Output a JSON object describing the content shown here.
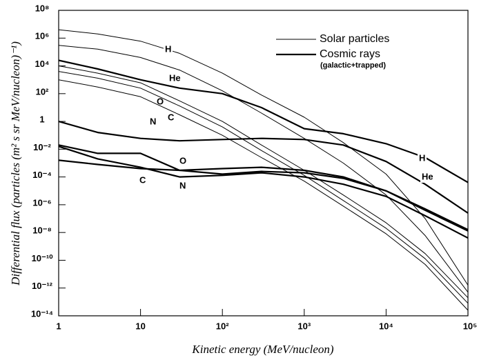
{
  "chart_data": {
    "type": "line",
    "xlabel": "Kinetic energy (MeV/nucleon)",
    "ylabel": "Differential flux (particles (m² s sr MeV/nucleon)⁻¹)",
    "x_log": true,
    "y_log": true,
    "color": "#000000",
    "xlim": [
      1,
      100000
    ],
    "ylim": [
      1e-14,
      100000000
    ],
    "xticks": [
      1,
      10,
      {
        "value": 100,
        "label": "10²"
      },
      {
        "value": 1000,
        "label": "10³"
      },
      {
        "value": 10000,
        "label": "10⁴"
      },
      {
        "value": 100000,
        "label": "10⁵"
      }
    ],
    "yticks": [
      {
        "value": 100000000,
        "label": "10⁸"
      },
      {
        "value": 1000000,
        "label": "10⁶"
      },
      {
        "value": 10000,
        "label": "10⁴"
      },
      {
        "value": 100,
        "label": "10²"
      },
      1,
      {
        "value": 0.01,
        "label": "10⁻²"
      },
      {
        "value": 0.0001,
        "label": "10⁻⁴"
      },
      {
        "value": 1e-06,
        "label": "10⁻⁶"
      },
      {
        "value": 1e-08,
        "label": "10⁻⁸"
      },
      {
        "value": 1e-10,
        "label": "10⁻¹⁰"
      },
      {
        "value": 1e-12,
        "label": "10⁻¹²"
      },
      {
        "value": 1e-14,
        "label": "10⁻¹⁴"
      }
    ],
    "x": [
      1,
      3,
      10,
      30,
      100,
      300,
      1000,
      3000,
      10000,
      30000,
      100000
    ],
    "groups": [
      {
        "name": "Solar particles",
        "line_width": 1,
        "series": [
          {
            "name": "H",
            "values": [
              4000000.0,
              2000000.0,
              600000.0,
              80000.0,
              3000.0,
              80,
              2,
              0.03,
              0.00016,
              1e-07,
              1.6e-12
            ]
          },
          {
            "name": "He",
            "values": [
              300000.0,
              160000.0,
              40000.0,
              5000.0,
              160,
              4,
              0.06,
              0.001,
              5e-06,
              6e-09,
              5e-13
            ]
          },
          {
            "name": "O",
            "values": [
              10000.0,
              3000.0,
              600,
              30,
              1,
              0.02,
              0.0003,
              5e-06,
              5e-08,
              3e-10,
              2e-13
            ]
          },
          {
            "name": "C",
            "values": [
              4000.0,
              1300.0,
              250,
              13,
              0.4,
              0.008,
              0.00013,
              2e-06,
              2e-08,
              1.3e-10,
              8e-14
            ]
          },
          {
            "name": "N",
            "values": [
              1000.0,
              300,
              60,
              3,
              0.1,
              0.0025,
              5e-05,
              8e-07,
              8e-09,
              5e-11,
              2.5e-14
            ]
          }
        ]
      },
      {
        "name": "Cosmic rays",
        "subtitle": "(galactic+trapped)",
        "line_width": 2.2,
        "series": [
          {
            "name": "H",
            "values": [
              25000.0,
              6000.0,
              1000.0,
              250,
              100,
              10,
              0.3,
              0.13,
              0.025,
              0.0025,
              4e-05
            ]
          },
          {
            "name": "He",
            "values": [
              1,
              0.16,
              0.06,
              0.04,
              0.05,
              0.06,
              0.05,
              0.02,
              0.0013,
              3e-05,
              2.5e-07
            ]
          },
          {
            "name": "O",
            "values": [
              0.02,
              0.005,
              0.005,
              0.0003,
              0.00016,
              0.00025,
              0.0002,
              8e-05,
              1e-05,
              5e-07,
              1.6e-08
            ]
          },
          {
            "name": "C",
            "values": [
              0.0016,
              0.0008,
              0.0004,
              0.0003,
              0.0004,
              0.0005,
              0.0003,
              0.0001,
              1e-05,
              4e-07,
              1.3e-08
            ]
          },
          {
            "name": "N",
            "values": [
              0.016,
              0.002,
              0.0005,
              0.0001,
              0.00013,
              0.0002,
              0.0001,
              3e-05,
              4e-06,
              1.6e-07,
              4e-09
            ]
          }
        ]
      }
    ]
  }
}
